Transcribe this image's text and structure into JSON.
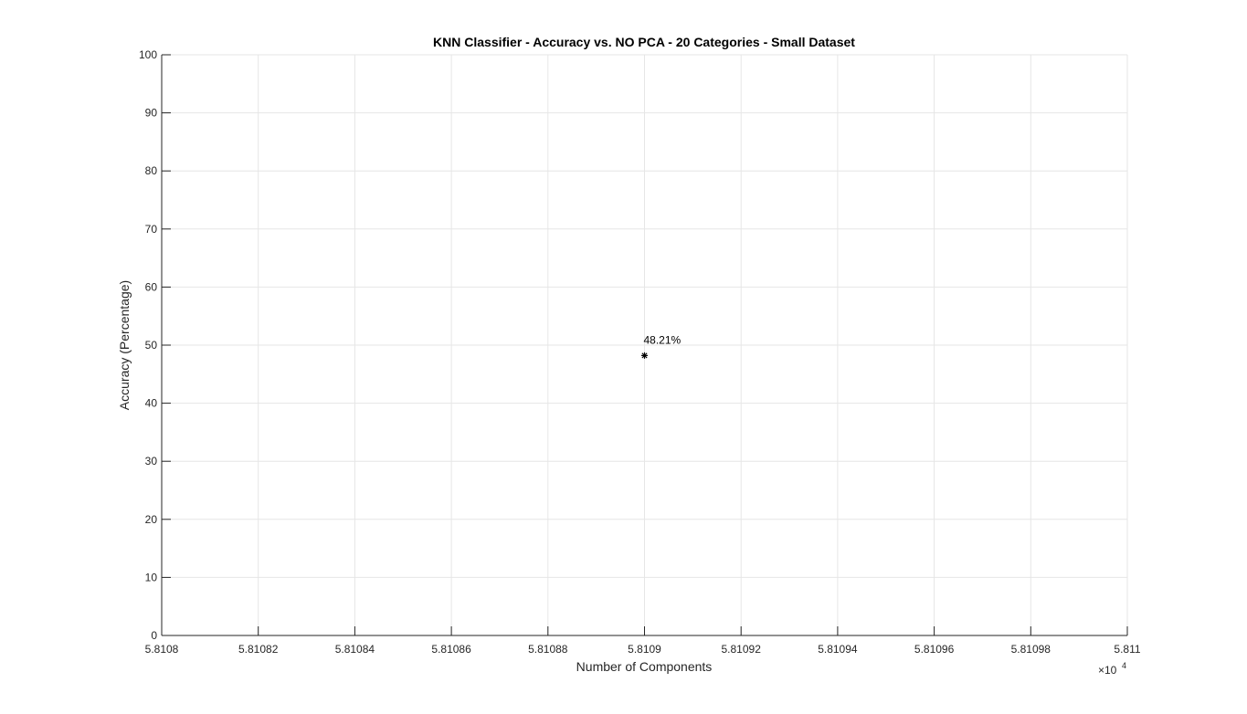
{
  "chart_data": {
    "type": "scatter",
    "title": "KNN Classifier - Accuracy vs. NO PCA - 20 Categories - Small Dataset",
    "xlabel": "Number of Components",
    "ylabel": "Accuracy (Percentage)",
    "x_exponent_label": "×10",
    "x_exponent_power": "4",
    "xlim": [
      5.8108,
      5.811
    ],
    "ylim": [
      0,
      100
    ],
    "x_ticks": [
      5.8108,
      5.81082,
      5.81084,
      5.81086,
      5.81088,
      5.8109,
      5.81092,
      5.81094,
      5.81096,
      5.81098,
      5.811
    ],
    "x_tick_labels": [
      "5.8108",
      "5.81082",
      "5.81084",
      "5.81086",
      "5.81088",
      "5.8109",
      "5.81092",
      "5.81094",
      "5.81096",
      "5.81098",
      "5.811"
    ],
    "y_ticks": [
      0,
      10,
      20,
      30,
      40,
      50,
      60,
      70,
      80,
      90,
      100
    ],
    "y_tick_labels": [
      "0",
      "10",
      "20",
      "30",
      "40",
      "50",
      "60",
      "70",
      "80",
      "90",
      "100"
    ],
    "grid": true,
    "points": [
      {
        "x": 5.8109,
        "y": 48.21,
        "label": "48.21%",
        "marker": "*"
      }
    ],
    "colors": {
      "marker": "#000000",
      "grid": "#e6e6e6",
      "axis": "#262626"
    }
  }
}
